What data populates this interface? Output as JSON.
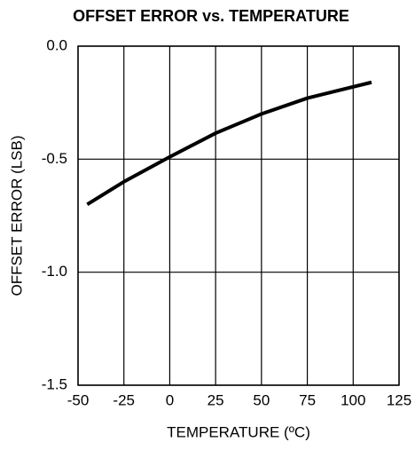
{
  "chart_data": {
    "type": "line",
    "title": "OFFSET ERROR vs. TEMPERATURE",
    "xlabel": "TEMPERATURE (ºC)",
    "ylabel": "OFFSET ERROR (LSB)",
    "x": [
      -45,
      -25,
      0,
      25,
      50,
      75,
      110
    ],
    "series": [
      {
        "color": "#000000",
        "values": [
          -0.7,
          -0.6,
          -0.49,
          -0.385,
          -0.3,
          -0.23,
          -0.16
        ]
      }
    ],
    "xlim": [
      -50,
      125
    ],
    "xticks": [
      -50,
      -25,
      0,
      25,
      50,
      75,
      100,
      125
    ],
    "ylim": [
      -1.5,
      0
    ],
    "yticks": [
      {
        "value": 0,
        "label": "0.0"
      },
      -0.5,
      {
        "value": -1,
        "label": "-1.0"
      },
      -1.5
    ],
    "grid": true
  }
}
